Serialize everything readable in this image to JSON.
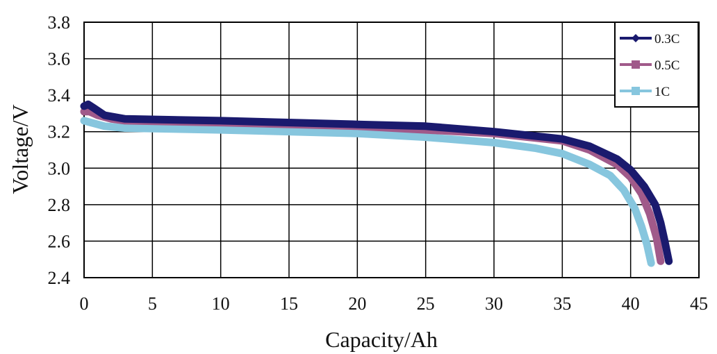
{
  "chart_data": {
    "type": "line",
    "xlabel": "Capacity/Ah",
    "ylabel": "Voltage/V",
    "xlim": [
      0,
      45
    ],
    "ylim": [
      2.4,
      3.8
    ],
    "x_ticks": [
      "0",
      "5",
      "10",
      "15",
      "20",
      "25",
      "30",
      "35",
      "40",
      "45"
    ],
    "y_ticks": [
      "2.4",
      "2.6",
      "2.8",
      "3.0",
      "3.2",
      "3.4",
      "3.6",
      "3.8"
    ],
    "grid": true,
    "legend_position": "top-right",
    "series": [
      {
        "name": "0.3C",
        "color": "#1a1a6e",
        "marker": "diamond",
        "points": [
          [
            0,
            3.34
          ],
          [
            0.3,
            3.35
          ],
          [
            0.7,
            3.33
          ],
          [
            1.5,
            3.29
          ],
          [
            3,
            3.27
          ],
          [
            10,
            3.26
          ],
          [
            20,
            3.24
          ],
          [
            25,
            3.23
          ],
          [
            30,
            3.2
          ],
          [
            35,
            3.16
          ],
          [
            37,
            3.12
          ],
          [
            39,
            3.05
          ],
          [
            40,
            2.99
          ],
          [
            41,
            2.9
          ],
          [
            41.8,
            2.8
          ],
          [
            42.2,
            2.7
          ],
          [
            42.5,
            2.6
          ],
          [
            42.8,
            2.49
          ]
        ]
      },
      {
        "name": "0.5C",
        "color": "#a05a8a",
        "marker": "square",
        "points": [
          [
            0,
            3.31
          ],
          [
            0.4,
            3.31
          ],
          [
            1,
            3.29
          ],
          [
            2,
            3.27
          ],
          [
            3,
            3.26
          ],
          [
            10,
            3.25
          ],
          [
            20,
            3.23
          ],
          [
            25,
            3.21
          ],
          [
            30,
            3.19
          ],
          [
            35,
            3.15
          ],
          [
            37,
            3.1
          ],
          [
            39,
            3.02
          ],
          [
            40,
            2.95
          ],
          [
            40.8,
            2.86
          ],
          [
            41.4,
            2.75
          ],
          [
            41.9,
            2.62
          ],
          [
            42.2,
            2.49
          ]
        ]
      },
      {
        "name": "1C",
        "color": "#87c6de",
        "marker": "square",
        "points": [
          [
            0,
            3.26
          ],
          [
            0.5,
            3.25
          ],
          [
            1.5,
            3.23
          ],
          [
            3,
            3.22
          ],
          [
            10,
            3.21
          ],
          [
            20,
            3.19
          ],
          [
            25,
            3.17
          ],
          [
            30,
            3.14
          ],
          [
            33,
            3.11
          ],
          [
            35,
            3.08
          ],
          [
            37,
            3.02
          ],
          [
            38.5,
            2.96
          ],
          [
            39.5,
            2.88
          ],
          [
            40.3,
            2.78
          ],
          [
            40.8,
            2.68
          ],
          [
            41.2,
            2.58
          ],
          [
            41.5,
            2.48
          ]
        ]
      }
    ]
  }
}
